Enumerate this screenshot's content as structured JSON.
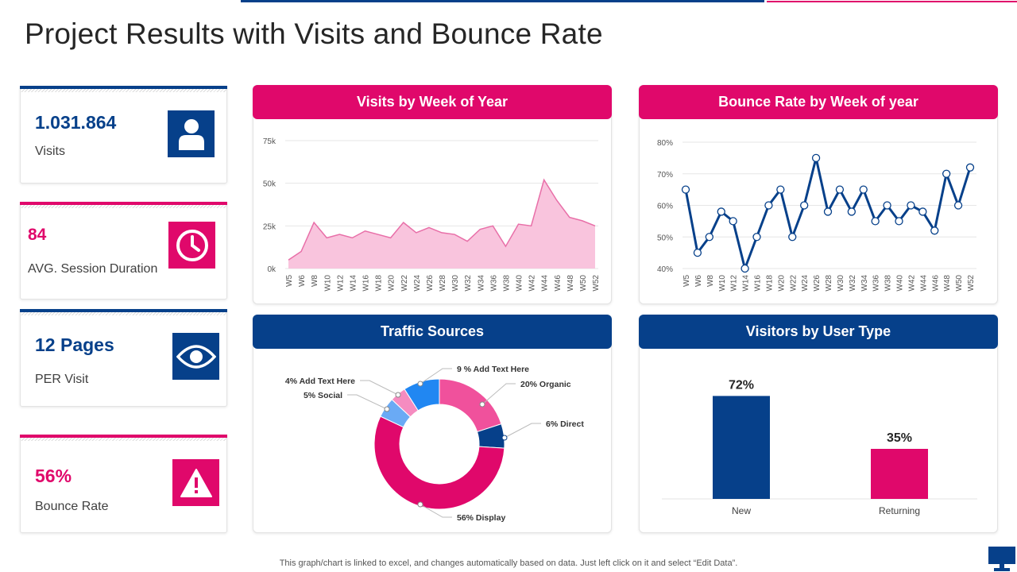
{
  "title": "Project Results with Visits and Bounce Rate",
  "kpis": [
    {
      "value": "1.031.864",
      "label": "Visits",
      "icon": "user-icon",
      "color": "#06408a"
    },
    {
      "value": "84",
      "label": "AVG. Session Duration",
      "icon": "clock-icon",
      "color": "#e0086b"
    },
    {
      "value": "12 Pages",
      "label": "PER Visit",
      "icon": "eye-icon",
      "color": "#06408a"
    },
    {
      "value": "56%",
      "label": "Bounce Rate",
      "icon": "warning-icon",
      "color": "#e0086b"
    }
  ],
  "panels": {
    "visits": "Visits by Week of Year",
    "bounce": "Bounce Rate by Week of year",
    "traffic": "Traffic Sources",
    "visitors": "Visitors by User Type"
  },
  "footer": "This graph/chart is linked to excel,  and changes automatically based on data. Just left click on it and select “Edit Data”.",
  "colors": {
    "blue": "#06408a",
    "pink": "#e0086b",
    "area_fill": "#f9c4dd",
    "area_line": "#e86fa8"
  },
  "chart_data": [
    {
      "type": "area",
      "title": "Visits by Week of Year",
      "categories": [
        "W5",
        "W6",
        "W8",
        "W10",
        "W12",
        "W14",
        "W16",
        "W18",
        "W20",
        "W22",
        "W24",
        "W26",
        "W28",
        "W30",
        "W32",
        "W34",
        "W36",
        "W38",
        "W40",
        "W42",
        "W44",
        "W46",
        "W48",
        "W50",
        "W52"
      ],
      "values": [
        5000,
        10000,
        27000,
        18000,
        20000,
        18000,
        22000,
        20000,
        18000,
        27000,
        21000,
        24000,
        21000,
        20000,
        16000,
        23000,
        25000,
        13000,
        26000,
        25000,
        52000,
        40000,
        30000,
        28000,
        25000
      ],
      "yticks": [
        "0k",
        "25k",
        "50k",
        "75k"
      ],
      "ylim": [
        0,
        75000
      ]
    },
    {
      "type": "line",
      "title": "Bounce Rate by Week of year",
      "categories": [
        "W5",
        "W6",
        "W8",
        "W10",
        "W12",
        "W14",
        "W16",
        "W18",
        "W20",
        "W22",
        "W24",
        "W26",
        "W28",
        "W30",
        "W32",
        "W34",
        "W36",
        "W38",
        "W40",
        "W42",
        "W44",
        "W46",
        "W48",
        "W50",
        "W52"
      ],
      "values": [
        65,
        45,
        50,
        58,
        55,
        40,
        50,
        60,
        65,
        50,
        60,
        75,
        58,
        65,
        58,
        65,
        55,
        60,
        55,
        60,
        58,
        52,
        70,
        60,
        72
      ],
      "yticks": [
        "40%",
        "50%",
        "60%",
        "70%",
        "80%"
      ],
      "ylim": [
        40,
        80
      ]
    },
    {
      "type": "pie",
      "title": "Traffic Sources",
      "slices": [
        {
          "label": "20% Organic",
          "value": 20,
          "color": "#f0519c"
        },
        {
          "label": "6% Direct",
          "value": 6,
          "color": "#06408a"
        },
        {
          "label": "56% Display",
          "value": 56,
          "color": "#e0086b"
        },
        {
          "label": "5% Social",
          "value": 5,
          "color": "#6aaaf5"
        },
        {
          "label": "4% Add Text Here",
          "value": 4,
          "color": "#f58cc0"
        },
        {
          "label": "9 % Add Text Here",
          "value": 9,
          "color": "#2187f2"
        }
      ]
    },
    {
      "type": "bar",
      "title": "Visitors by User Type",
      "categories": [
        "New",
        "Returning"
      ],
      "values": [
        72,
        35
      ],
      "value_labels": [
        "72%",
        "35%"
      ],
      "colors": [
        "#06408a",
        "#e0086b"
      ],
      "ylim": [
        0,
        100
      ]
    }
  ]
}
